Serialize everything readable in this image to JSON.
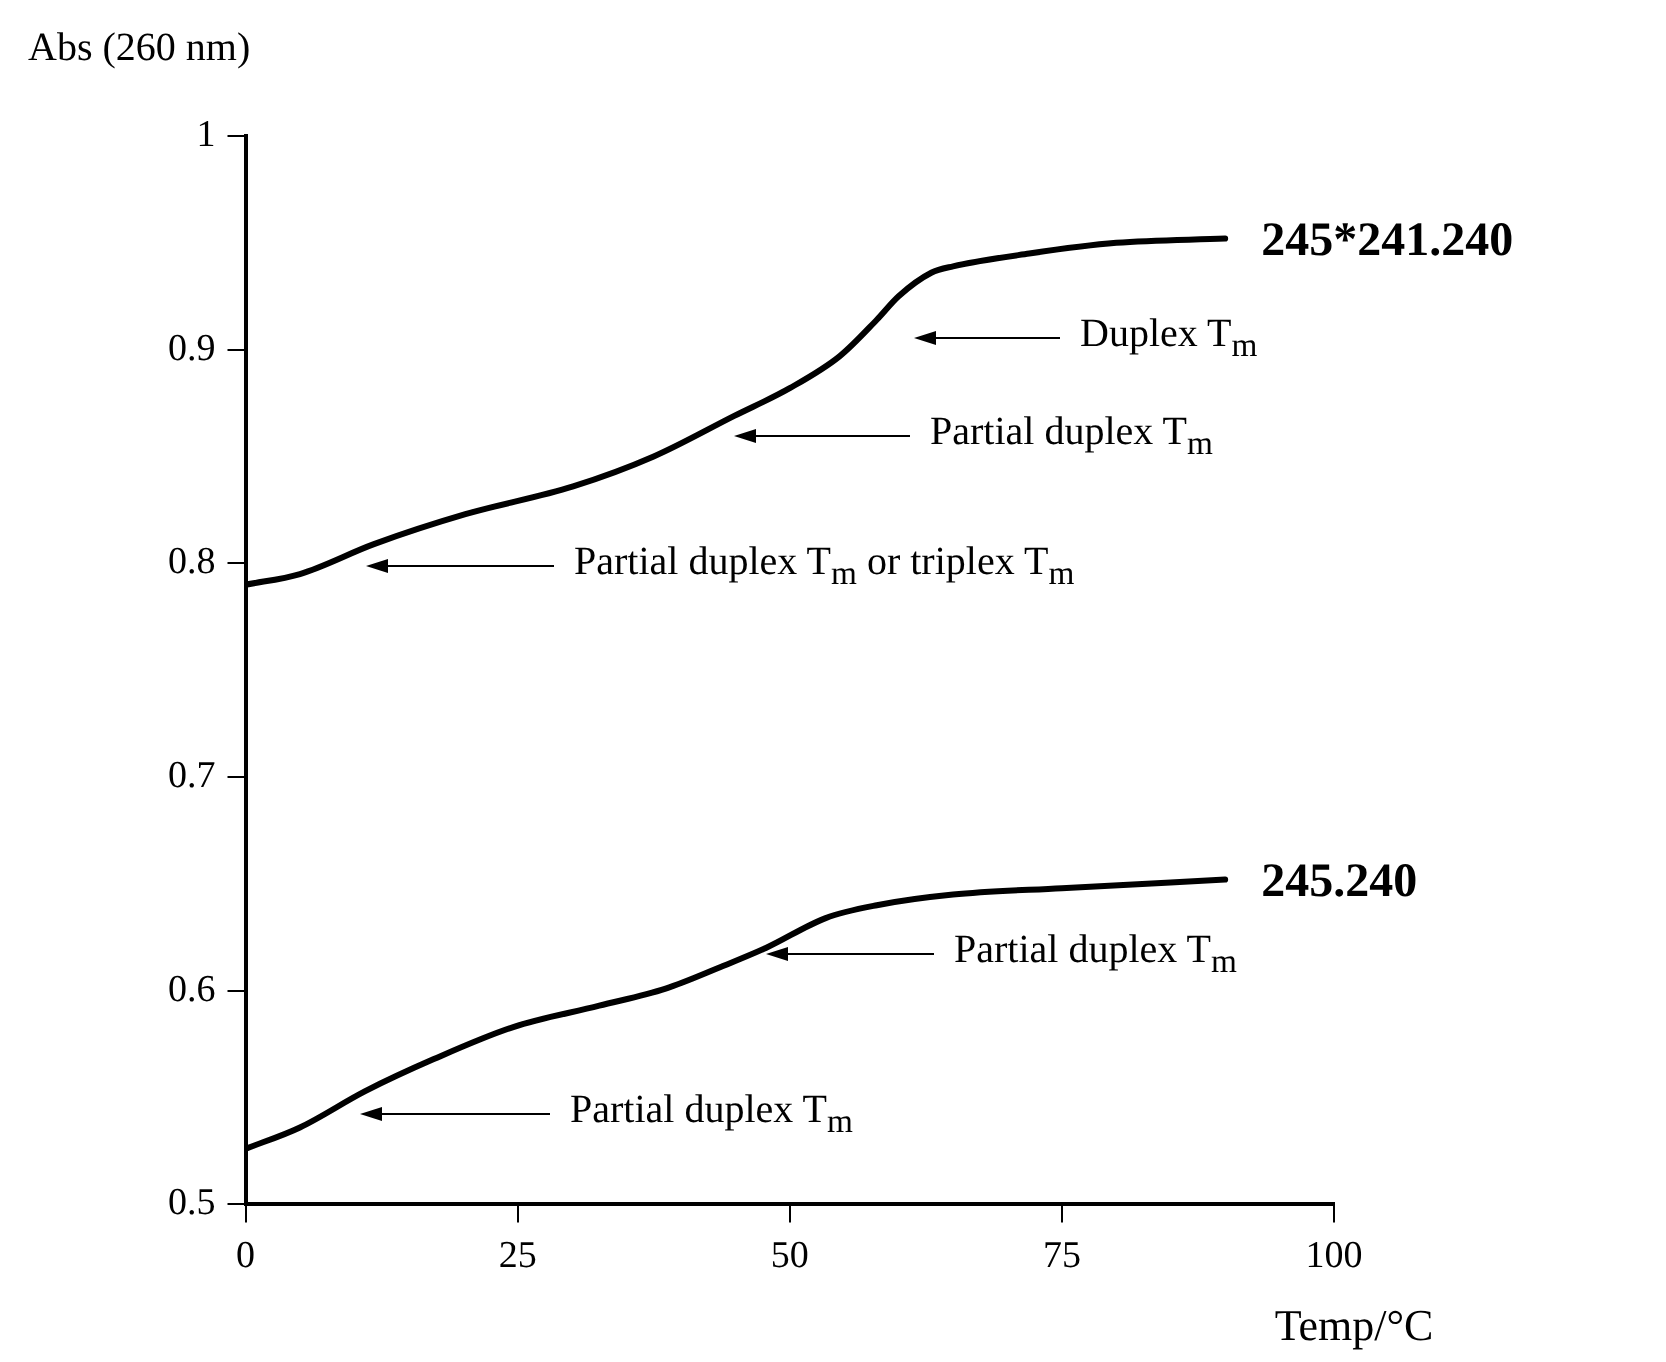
{
  "chart_data": {
    "type": "line",
    "xlabel": "Temp/°C",
    "ylabel": "Abs (260 nm)",
    "xlim": [
      0,
      100
    ],
    "xticks": [
      0,
      25,
      50,
      75,
      100
    ],
    "ylim": [
      0.5,
      1
    ],
    "yticks": [
      0.5,
      0.6,
      0.7,
      0.8,
      0.9,
      1
    ],
    "grid": false,
    "legend": false,
    "marker": "none",
    "line_style": "solid",
    "series": [
      {
        "name": "245*241.240",
        "color": "#000000",
        "x": [
          0,
          5,
          11.8,
          20.2,
          30.1,
          37.5,
          44.9,
          50,
          54.6,
          58,
          60,
          63,
          65,
          72,
          80,
          90
        ],
        "values": [
          0.79,
          0.795,
          0.809,
          0.823,
          0.836,
          0.85,
          0.869,
          0.882,
          0.897,
          0.914,
          0.925,
          0.936,
          0.939,
          0.945,
          0.95,
          0.952
        ]
      },
      {
        "name": "245.240",
        "color": "#000000",
        "x": [
          0,
          5,
          11,
          17.3,
          24.6,
          32.5,
          38.6,
          43.6,
          47.8,
          53.3,
          58,
          65,
          75,
          90
        ],
        "values": [
          0.526,
          0.536,
          0.553,
          0.568,
          0.583,
          0.593,
          0.601,
          0.611,
          0.62,
          0.634,
          0.64,
          0.645,
          0.648,
          0.652
        ]
      }
    ],
    "annotations": [
      "Duplex T$_{m}$",
      "Partial duplex T$_{m}$",
      "Partial duplex T$_{m}$ or triplex T$_{m}$",
      "Partial duplex T$_{m}$",
      "Partial duplex T$_{m}$"
    ]
  }
}
